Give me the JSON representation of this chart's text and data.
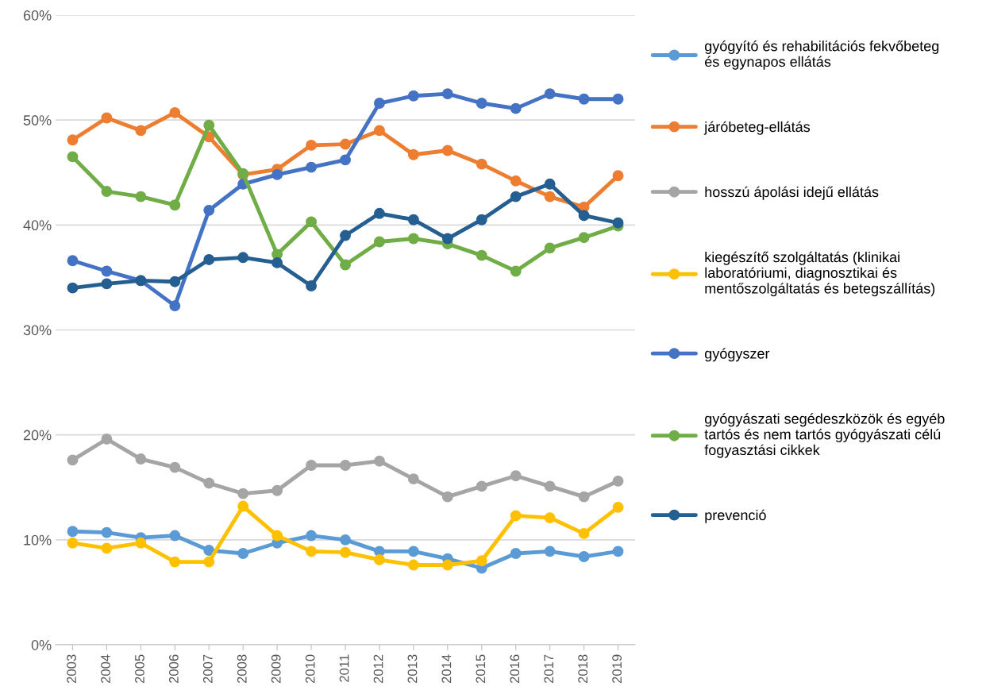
{
  "chart_data": {
    "type": "line",
    "categories": [
      "2003",
      "2004",
      "2005",
      "2006",
      "2007",
      "2008",
      "2009",
      "2010",
      "2011",
      "2012",
      "2013",
      "2014",
      "2015",
      "2016",
      "2017",
      "2018",
      "2019"
    ],
    "ylim": [
      0,
      60
    ],
    "yticks": [
      {
        "value": 0,
        "label": "0%"
      },
      {
        "value": 10,
        "label": "10%"
      },
      {
        "value": 20,
        "label": "20%"
      },
      {
        "value": 30,
        "label": "30%"
      },
      {
        "value": 40,
        "label": "40%"
      },
      {
        "value": 50,
        "label": "50%"
      },
      {
        "value": 60,
        "label": "60%"
      }
    ],
    "grid": "y",
    "legend": "right",
    "marker": "circle",
    "line_style": "solid",
    "series": [
      {
        "name": "gyógyító és rehabilitációs fekvőbeteg\nés egynapos ellátás",
        "color": "#5b9bd5",
        "values": [
          10.8,
          10.7,
          10.2,
          10.4,
          9.0,
          8.7,
          9.7,
          10.4,
          10.0,
          8.9,
          8.9,
          8.2,
          7.3,
          8.7,
          8.9,
          8.4,
          8.9
        ]
      },
      {
        "name": "járóbeteg-ellátás",
        "color": "#ed7d31",
        "values": [
          48.1,
          50.2,
          49.0,
          50.7,
          48.4,
          44.8,
          45.3,
          47.6,
          47.7,
          49.0,
          46.7,
          47.1,
          45.8,
          44.2,
          42.7,
          41.7,
          44.7
        ]
      },
      {
        "name": "hosszú ápolási idejű ellátás",
        "color": "#a5a5a5",
        "values": [
          17.6,
          19.6,
          17.7,
          16.9,
          15.4,
          14.4,
          14.7,
          17.1,
          17.1,
          17.5,
          15.8,
          14.1,
          15.1,
          16.1,
          15.1,
          14.1,
          15.6
        ]
      },
      {
        "name": "kiegészítő szolgáltatás (klinikai\nlaboratóriumi, diagnosztikai és\nmentőszolgáltatás és betegszállítás)",
        "color": "#ffc000",
        "values": [
          9.7,
          9.2,
          9.7,
          7.9,
          7.9,
          13.2,
          10.4,
          8.9,
          8.8,
          8.1,
          7.6,
          7.6,
          8.0,
          12.3,
          12.1,
          10.6,
          13.1
        ]
      },
      {
        "name": "gyógyszer",
        "color": "#4472c4",
        "values": [
          36.6,
          35.6,
          34.7,
          32.3,
          41.4,
          43.9,
          44.8,
          45.5,
          46.2,
          51.6,
          52.3,
          52.5,
          51.6,
          51.1,
          52.5,
          52.0,
          52.0
        ]
      },
      {
        "name": "gyógyászati segédeszközök és egyéb\ntartós és nem tartós gyógyászati célú\nfogyasztási cikkek",
        "color": "#70ad47",
        "values": [
          46.5,
          43.2,
          42.7,
          41.9,
          49.5,
          44.9,
          37.2,
          40.3,
          36.2,
          38.4,
          38.7,
          38.2,
          37.1,
          35.6,
          37.8,
          38.8,
          39.9
        ]
      },
      {
        "name": "prevenció",
        "color": "#255e91",
        "values": [
          34.0,
          34.4,
          34.7,
          34.6,
          36.7,
          36.9,
          36.4,
          34.2,
          39.0,
          41.1,
          40.5,
          38.7,
          40.5,
          42.7,
          43.9,
          40.9,
          40.2
        ]
      }
    ]
  }
}
